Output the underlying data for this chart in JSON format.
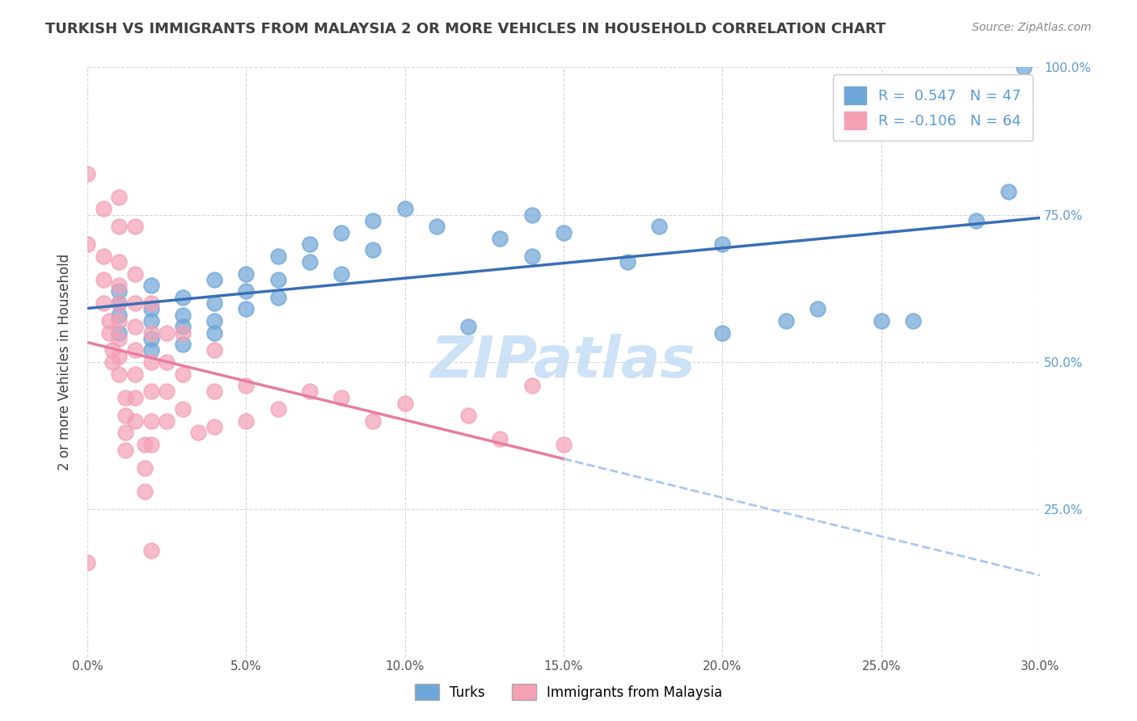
{
  "title": "TURKISH VS IMMIGRANTS FROM MALAYSIA 2 OR MORE VEHICLES IN HOUSEHOLD CORRELATION CHART",
  "source_text": "Source: ZipAtlas.com",
  "xlabel": "",
  "ylabel": "2 or more Vehicles in Household",
  "xmin": 0.0,
  "xmax": 0.3,
  "ymin": 0.0,
  "ymax": 1.0,
  "x_tick_labels": [
    "0.0%",
    "5.0%",
    "10.0%",
    "15.0%",
    "20.0%",
    "25.0%",
    "30.0%"
  ],
  "x_tick_values": [
    0.0,
    0.05,
    0.1,
    0.15,
    0.2,
    0.25,
    0.3
  ],
  "y_tick_labels": [
    "25.0%",
    "50.0%",
    "75.0%",
    "100.0%"
  ],
  "y_tick_values": [
    0.25,
    0.5,
    0.75,
    1.0
  ],
  "right_tick_labels": [
    "25.0%",
    "50.0%",
    "75.0%",
    "100.0%"
  ],
  "legend_label_blue": "Turks",
  "legend_label_pink": "Immigrants from Malaysia",
  "r_blue": 0.547,
  "n_blue": 47,
  "r_pink": -0.106,
  "n_pink": 64,
  "blue_color": "#6ea6d7",
  "pink_color": "#f4a0b5",
  "blue_line_color": "#3a6eb5",
  "pink_line_color": "#e87ca0",
  "dashed_line_color": "#a8c8f0",
  "watermark_color": "#c8dff5",
  "title_color": "#404040",
  "axis_label_color": "#404040",
  "tick_color_right": "#5b9bd5",
  "background_color": "#ffffff",
  "blue_points": [
    [
      0.01,
      0.58
    ],
    [
      0.01,
      0.6
    ],
    [
      0.01,
      0.55
    ],
    [
      0.01,
      0.62
    ],
    [
      0.02,
      0.57
    ],
    [
      0.02,
      0.54
    ],
    [
      0.02,
      0.59
    ],
    [
      0.02,
      0.63
    ],
    [
      0.02,
      0.52
    ],
    [
      0.03,
      0.61
    ],
    [
      0.03,
      0.58
    ],
    [
      0.03,
      0.56
    ],
    [
      0.03,
      0.53
    ],
    [
      0.04,
      0.64
    ],
    [
      0.04,
      0.6
    ],
    [
      0.04,
      0.57
    ],
    [
      0.04,
      0.55
    ],
    [
      0.05,
      0.65
    ],
    [
      0.05,
      0.62
    ],
    [
      0.05,
      0.59
    ],
    [
      0.06,
      0.68
    ],
    [
      0.06,
      0.64
    ],
    [
      0.06,
      0.61
    ],
    [
      0.07,
      0.7
    ],
    [
      0.07,
      0.67
    ],
    [
      0.08,
      0.72
    ],
    [
      0.08,
      0.65
    ],
    [
      0.09,
      0.74
    ],
    [
      0.09,
      0.69
    ],
    [
      0.1,
      0.76
    ],
    [
      0.11,
      0.73
    ],
    [
      0.12,
      0.56
    ],
    [
      0.13,
      0.71
    ],
    [
      0.14,
      0.75
    ],
    [
      0.14,
      0.68
    ],
    [
      0.15,
      0.72
    ],
    [
      0.17,
      0.67
    ],
    [
      0.18,
      0.73
    ],
    [
      0.2,
      0.7
    ],
    [
      0.2,
      0.55
    ],
    [
      0.22,
      0.57
    ],
    [
      0.23,
      0.59
    ],
    [
      0.25,
      0.57
    ],
    [
      0.26,
      0.57
    ],
    [
      0.28,
      0.74
    ],
    [
      0.29,
      0.79
    ],
    [
      0.295,
      1.0
    ]
  ],
  "pink_points": [
    [
      0.0,
      0.7
    ],
    [
      0.005,
      0.68
    ],
    [
      0.005,
      0.64
    ],
    [
      0.005,
      0.6
    ],
    [
      0.007,
      0.57
    ],
    [
      0.007,
      0.55
    ],
    [
      0.008,
      0.52
    ],
    [
      0.008,
      0.5
    ],
    [
      0.01,
      0.73
    ],
    [
      0.01,
      0.67
    ],
    [
      0.01,
      0.63
    ],
    [
      0.01,
      0.6
    ],
    [
      0.01,
      0.57
    ],
    [
      0.01,
      0.54
    ],
    [
      0.01,
      0.51
    ],
    [
      0.01,
      0.48
    ],
    [
      0.012,
      0.44
    ],
    [
      0.012,
      0.41
    ],
    [
      0.012,
      0.38
    ],
    [
      0.012,
      0.35
    ],
    [
      0.015,
      0.65
    ],
    [
      0.015,
      0.6
    ],
    [
      0.015,
      0.56
    ],
    [
      0.015,
      0.52
    ],
    [
      0.015,
      0.48
    ],
    [
      0.015,
      0.44
    ],
    [
      0.015,
      0.4
    ],
    [
      0.018,
      0.36
    ],
    [
      0.018,
      0.32
    ],
    [
      0.018,
      0.28
    ],
    [
      0.02,
      0.6
    ],
    [
      0.02,
      0.55
    ],
    [
      0.02,
      0.5
    ],
    [
      0.02,
      0.45
    ],
    [
      0.02,
      0.4
    ],
    [
      0.02,
      0.36
    ],
    [
      0.025,
      0.55
    ],
    [
      0.025,
      0.5
    ],
    [
      0.025,
      0.45
    ],
    [
      0.025,
      0.4
    ],
    [
      0.03,
      0.55
    ],
    [
      0.03,
      0.48
    ],
    [
      0.03,
      0.42
    ],
    [
      0.035,
      0.38
    ],
    [
      0.04,
      0.52
    ],
    [
      0.04,
      0.45
    ],
    [
      0.04,
      0.39
    ],
    [
      0.05,
      0.46
    ],
    [
      0.05,
      0.4
    ],
    [
      0.06,
      0.42
    ],
    [
      0.07,
      0.45
    ],
    [
      0.08,
      0.44
    ],
    [
      0.09,
      0.4
    ],
    [
      0.1,
      0.43
    ],
    [
      0.12,
      0.41
    ],
    [
      0.13,
      0.37
    ],
    [
      0.14,
      0.46
    ],
    [
      0.15,
      0.36
    ],
    [
      0.0,
      0.82
    ],
    [
      0.0,
      0.16
    ],
    [
      0.005,
      0.76
    ],
    [
      0.01,
      0.78
    ],
    [
      0.015,
      0.73
    ],
    [
      0.02,
      0.18
    ]
  ]
}
